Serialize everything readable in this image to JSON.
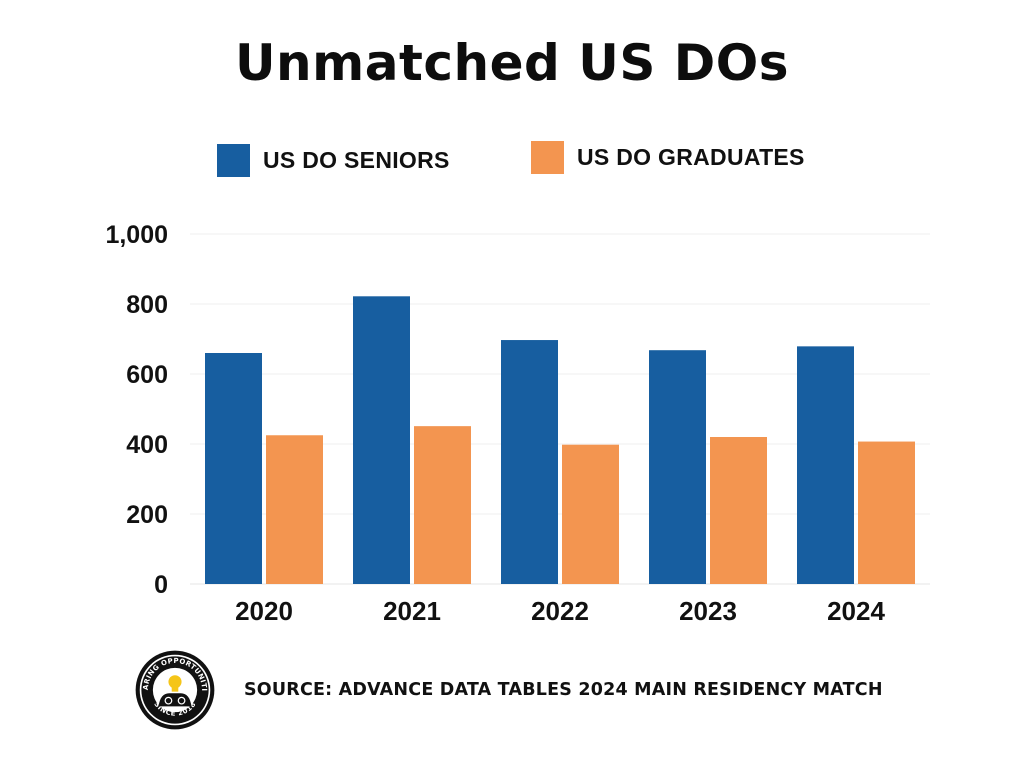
{
  "chart_data": {
    "type": "bar",
    "title": "Unmatched US DOs",
    "categories": [
      "2020",
      "2021",
      "2022",
      "2023",
      "2024"
    ],
    "series": [
      {
        "name": "US DO SENIORS",
        "color": "#175ea0",
        "values": [
          660,
          822,
          697,
          668,
          679
        ]
      },
      {
        "name": "US DO GRADUATES",
        "color": "#f39550",
        "values": [
          425,
          451,
          398,
          420,
          407
        ]
      }
    ],
    "xlabel": "",
    "ylabel": "",
    "ylim": [
      0,
      1000
    ],
    "yticks": [
      "0",
      "200",
      "400",
      "600",
      "800",
      "1,000"
    ],
    "grid": true,
    "legend_placement": "top"
  },
  "source": "SOURCE: ADVANCE DATA TABLES 2024 MAIN RESIDENCY MATCH",
  "logo": {
    "icon": "sharing-opportunities-logo",
    "text_top": "SHARING OPPORTUNITIES",
    "text_bottom": "SINCE 2018"
  }
}
